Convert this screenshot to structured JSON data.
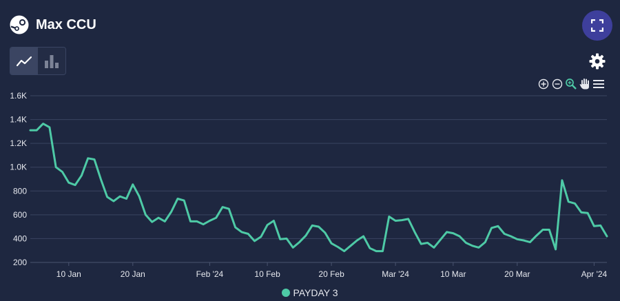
{
  "header": {
    "title": "Max CCU",
    "logo_icon": "steam-logo-icon"
  },
  "controls": {
    "fullscreen_icon": "expand-icon",
    "chart_type_toggle": [
      "line-chart-icon",
      "bar-chart-icon"
    ],
    "active_chart_type": "line",
    "settings_icon": "gear-icon",
    "zoom_toolbar": [
      "zoom-in-icon",
      "zoom-out-icon",
      "zoom-selection-icon",
      "pan-hand-icon",
      "menu-icon"
    ]
  },
  "colors": {
    "background": "#1e2740",
    "series": "#4ecaa6",
    "grid": "#3a4460",
    "accent": "#3e3f9c"
  },
  "chart_data": {
    "type": "line",
    "title": "Max CCU",
    "xlabel": "",
    "ylabel": "",
    "y_ticks": [
      "200",
      "400",
      "600",
      "800",
      "1.0K",
      "1.2K",
      "1.4K",
      "1.6K"
    ],
    "y_tick_values": [
      200,
      400,
      600,
      800,
      1000,
      1200,
      1400,
      1600
    ],
    "ylim": [
      200,
      1600
    ],
    "x_ticks": [
      {
        "date": "2024-01-10",
        "label": "10 Jan"
      },
      {
        "date": "2024-01-20",
        "label": "20 Jan"
      },
      {
        "date": "2024-02-01",
        "label": "Feb '24"
      },
      {
        "date": "2024-02-10",
        "label": "10 Feb"
      },
      {
        "date": "2024-02-20",
        "label": "20 Feb"
      },
      {
        "date": "2024-03-01",
        "label": "Mar '24"
      },
      {
        "date": "2024-03-10",
        "label": "10 Mar"
      },
      {
        "date": "2024-03-20",
        "label": "20 Mar"
      },
      {
        "date": "2024-04-01",
        "label": "Apr '24"
      }
    ],
    "xlim": [
      "2024-01-04",
      "2024-04-03"
    ],
    "grid": true,
    "legend_position": "bottom-center",
    "series": [
      {
        "name": "PAYDAY 3",
        "color": "#4ecaa6",
        "x": [
          "2024-01-04",
          "2024-01-05",
          "2024-01-06",
          "2024-01-07",
          "2024-01-08",
          "2024-01-09",
          "2024-01-10",
          "2024-01-11",
          "2024-01-12",
          "2024-01-13",
          "2024-01-14",
          "2024-01-15",
          "2024-01-16",
          "2024-01-17",
          "2024-01-18",
          "2024-01-19",
          "2024-01-20",
          "2024-01-21",
          "2024-01-22",
          "2024-01-23",
          "2024-01-24",
          "2024-01-25",
          "2024-01-26",
          "2024-01-27",
          "2024-01-28",
          "2024-01-29",
          "2024-01-30",
          "2024-01-31",
          "2024-02-01",
          "2024-02-02",
          "2024-02-03",
          "2024-02-04",
          "2024-02-05",
          "2024-02-06",
          "2024-02-07",
          "2024-02-08",
          "2024-02-09",
          "2024-02-10",
          "2024-02-11",
          "2024-02-12",
          "2024-02-13",
          "2024-02-14",
          "2024-02-15",
          "2024-02-16",
          "2024-02-17",
          "2024-02-18",
          "2024-02-19",
          "2024-02-20",
          "2024-02-21",
          "2024-02-22",
          "2024-02-23",
          "2024-02-24",
          "2024-02-25",
          "2024-02-26",
          "2024-02-27",
          "2024-02-28",
          "2024-02-29",
          "2024-03-01",
          "2024-03-02",
          "2024-03-03",
          "2024-03-04",
          "2024-03-05",
          "2024-03-06",
          "2024-03-07",
          "2024-03-08",
          "2024-03-09",
          "2024-03-10",
          "2024-03-11",
          "2024-03-12",
          "2024-03-13",
          "2024-03-14",
          "2024-03-15",
          "2024-03-16",
          "2024-03-17",
          "2024-03-18",
          "2024-03-19",
          "2024-03-20",
          "2024-03-21",
          "2024-03-22",
          "2024-03-23",
          "2024-03-24",
          "2024-03-25",
          "2024-03-26",
          "2024-03-27",
          "2024-03-28",
          "2024-03-29",
          "2024-03-30",
          "2024-03-31",
          "2024-04-01",
          "2024-04-02",
          "2024-04-03"
        ],
        "values": [
          1310,
          1310,
          1365,
          1335,
          1000,
          960,
          870,
          850,
          930,
          1075,
          1065,
          900,
          750,
          715,
          755,
          735,
          855,
          755,
          600,
          540,
          575,
          545,
          625,
          735,
          720,
          545,
          545,
          520,
          550,
          575,
          665,
          650,
          495,
          455,
          440,
          380,
          415,
          515,
          550,
          395,
          400,
          325,
          370,
          425,
          510,
          500,
          450,
          360,
          330,
          295,
          340,
          385,
          420,
          320,
          295,
          295,
          585,
          550,
          555,
          565,
          455,
          355,
          365,
          325,
          390,
          455,
          445,
          420,
          365,
          340,
          325,
          370,
          490,
          505,
          440,
          420,
          395,
          385,
          370,
          425,
          475,
          475,
          310,
          890,
          710,
          695,
          620,
          615,
          505,
          510,
          420
        ]
      }
    ]
  }
}
